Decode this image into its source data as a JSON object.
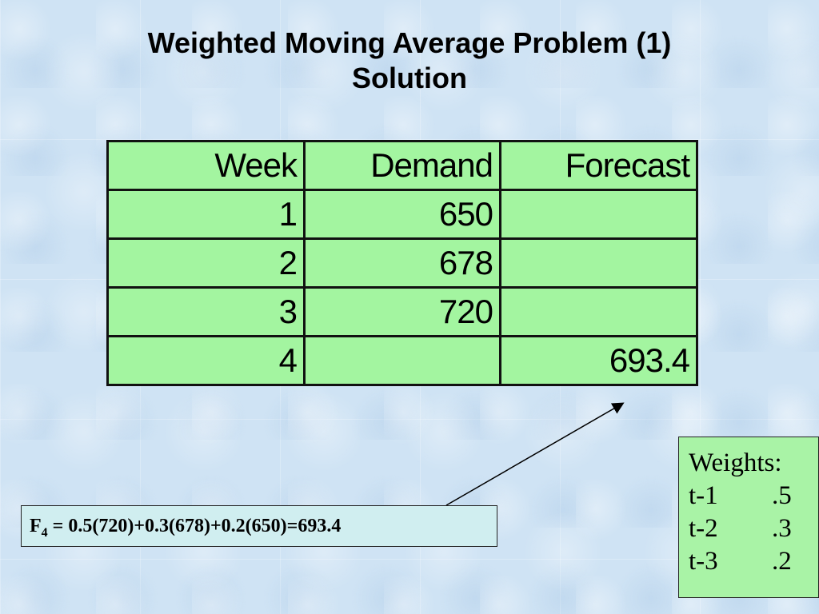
{
  "title": {
    "line1": "Weighted Moving Average Problem (1)",
    "line2": "Solution"
  },
  "table": {
    "headers": [
      "Week",
      "Demand",
      "Forecast"
    ],
    "rows": [
      [
        "1",
        "650",
        ""
      ],
      [
        "2",
        "678",
        ""
      ],
      [
        "3",
        "720",
        ""
      ],
      [
        "4",
        "",
        "693.4"
      ]
    ]
  },
  "formula": {
    "lhs": "F",
    "sub": "4",
    "rhs": " = 0.5(720)+0.3(678)+0.2(650)=693.4"
  },
  "weights": {
    "heading": "Weights:",
    "items": [
      {
        "lag": "t-1",
        "value": ".5"
      },
      {
        "lag": "t-2",
        "value": ".3"
      },
      {
        "lag": "t-3",
        "value": ".2"
      }
    ]
  },
  "colors": {
    "background": "#cfe3f4",
    "table_fill": "#a3f5a0",
    "formula_fill": "#d0eef0",
    "weights_fill": "#a9f3a6"
  }
}
